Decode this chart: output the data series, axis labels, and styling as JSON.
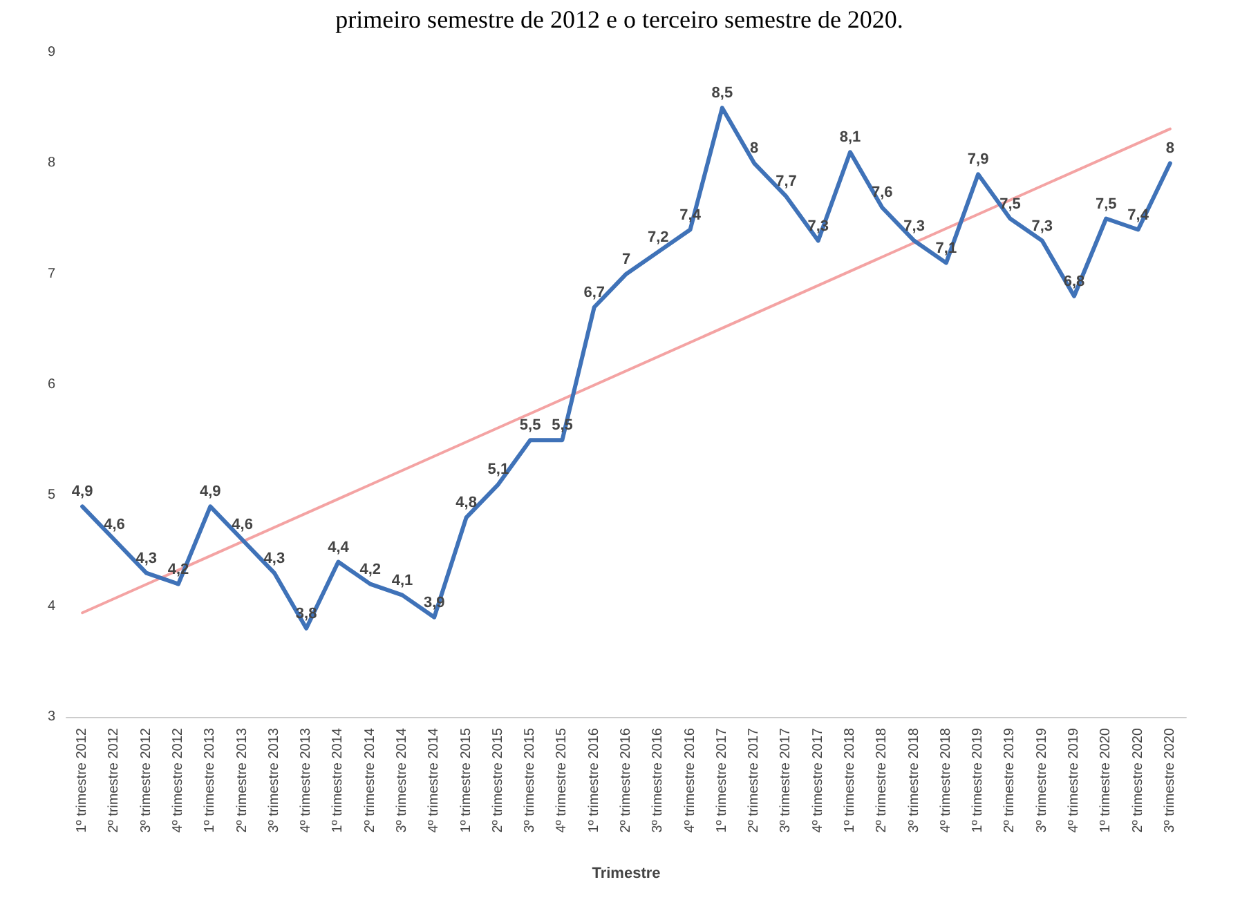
{
  "chart_data": {
    "type": "line",
    "title": "primeiro semestre de 2012 e o terceiro semestre de 2020.",
    "xlabel": "Trimestre",
    "categories": [
      "1º trimestre 2012",
      "2º trimestre 2012",
      "3º trimestre 2012",
      "4º trimestre 2012",
      "1º trimestre 2013",
      "2º trimestre 2013",
      "3º trimestre 2013",
      "4º trimestre 2013",
      "1º trimestre 2014",
      "2º trimestre 2014",
      "3º trimestre 2014",
      "4º trimestre 2014",
      "1º trimestre 2015",
      "2º trimestre 2015",
      "3º trimestre 2015",
      "4º trimestre 2015",
      "1º trimestre 2016",
      "2º trimestre 2016",
      "3º trimestre 2016",
      "4º trimestre 2016",
      "1º trimestre 2017",
      "2º trimestre 2017",
      "3º trimestre 2017",
      "4º trimestre 2017",
      "1º trimestre 2018",
      "2º trimestre 2018",
      "3º trimestre 2018",
      "4º trimestre 2018",
      "1º trimestre 2019",
      "2º trimestre 2019",
      "3º trimestre 2019",
      "4º trimestre 2019",
      "1º trimestre 2020",
      "2º trimestre 2020",
      "3º trimestre 2020"
    ],
    "series": [
      {
        "color": "#3f72b8",
        "values": [
          4.9,
          4.6,
          4.3,
          4.2,
          4.9,
          4.6,
          4.3,
          3.8,
          4.4,
          4.2,
          4.1,
          3.9,
          4.8,
          5.1,
          5.5,
          5.5,
          6.7,
          7,
          7.2,
          7.4,
          8.5,
          8,
          7.7,
          7.3,
          8.1,
          7.6,
          7.3,
          7.1,
          7.9,
          7.5,
          7.3,
          6.8,
          7.5,
          7.4,
          8
        ],
        "value_labels": [
          "4,9",
          "4,6",
          "4,3",
          "4,2",
          "4,9",
          "4,6",
          "4,3",
          "3,8",
          "4,4",
          "4,2",
          "4,1",
          "3,9",
          "4,8",
          "5,1",
          "5,5",
          "5,5",
          "6,7",
          "7",
          "7,2",
          "7,4",
          "8,5",
          "8",
          "7,7",
          "7,3",
          "8,1",
          "7,6",
          "7,3",
          "7,1",
          "7,9",
          "7,5",
          "7,3",
          "6,8",
          "7,5",
          "7,4",
          "8"
        ]
      },
      {
        "type": "line",
        "color": "#f4a3a3",
        "x": [
          "1º trimestre 2012",
          "3º trimestre 2020"
        ],
        "values": [
          3.94,
          8.31
        ]
      }
    ],
    "ylim": [
      3,
      9
    ],
    "yticks": [
      3,
      4,
      5,
      6,
      7,
      8,
      9
    ],
    "grid": false,
    "marker": "none",
    "line_style": "solid"
  }
}
